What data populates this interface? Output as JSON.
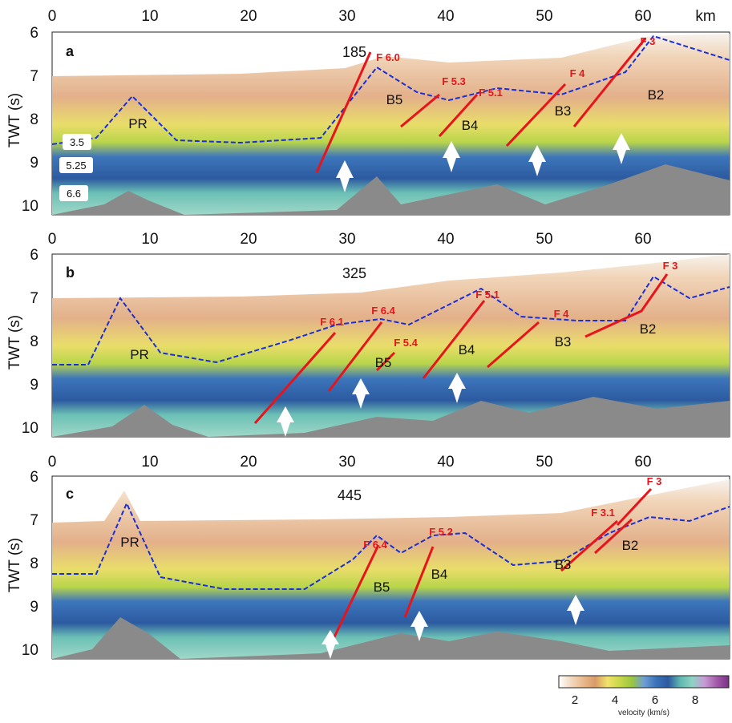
{
  "axis": {
    "x_ticks": [
      "0",
      "10",
      "20",
      "30",
      "40",
      "50",
      "60"
    ],
    "x_unit": "km",
    "y_ticks": [
      "6",
      "7",
      "8",
      "9",
      "10"
    ],
    "y_label": "TWT (s)"
  },
  "panels": [
    {
      "letter": "a",
      "line": "185",
      "structures": [
        "PR",
        "B5",
        "B4",
        "B3",
        "B2"
      ],
      "faults": [
        "F 6.0",
        "F 5.3",
        "F 5.1",
        "F 4",
        "F 3"
      ],
      "velocity_labels": [
        "3.5",
        "5.25",
        "6.6"
      ]
    },
    {
      "letter": "b",
      "line": "325",
      "structures": [
        "PR",
        "B5",
        "B4",
        "B3",
        "B2"
      ],
      "faults": [
        "F 6.1",
        "F 6.4",
        "F 5.4",
        "F 5.1",
        "F 4",
        "F 3"
      ]
    },
    {
      "letter": "c",
      "line": "445",
      "structures": [
        "PR",
        "B5",
        "B4",
        "B3",
        "B2"
      ],
      "faults": [
        "F 6.4",
        "F 5.2",
        "F 3.1",
        "F 3"
      ]
    }
  ],
  "colorbar": {
    "ticks": [
      "2",
      "4",
      "6",
      "8"
    ],
    "title": "velocity (km/s)",
    "colors": [
      "#ffffff",
      "#f2d9c0",
      "#e9b98c",
      "#d89b67",
      "#f0e36a",
      "#c8d84a",
      "#9cc63f",
      "#6f9fd4",
      "#3b73b8",
      "#2c5aa0",
      "#5fb8b0",
      "#8fd3c4",
      "#c79bd6",
      "#a35aa8",
      "#7a2f84"
    ]
  },
  "colors": {
    "fault": "#e8141c",
    "contour_blue": "#1a2ed6",
    "basement": "#8a8a8a",
    "arrow": "#ffffff"
  }
}
